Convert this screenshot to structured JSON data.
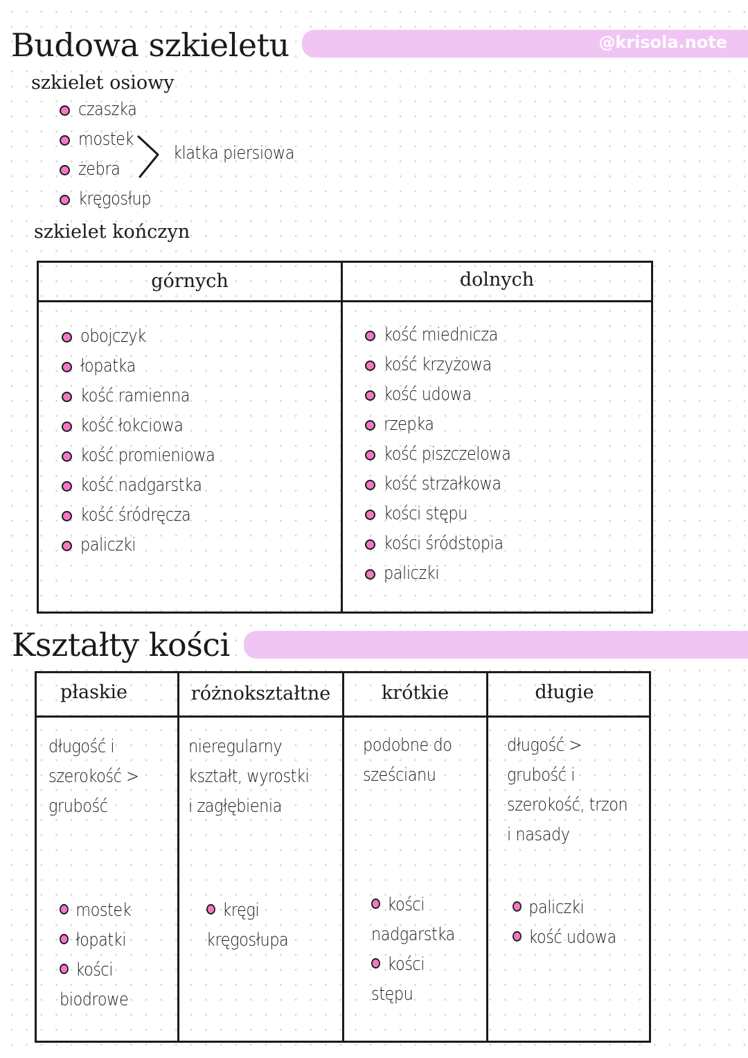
{
  "header": {
    "title": "Budowa szkieletu",
    "handle": "@krisola.note",
    "accent_color": "#f0c5f3",
    "bullet_color": "#f278c6"
  },
  "axial": {
    "heading": "szkielet osiowy",
    "items": [
      "czaszka",
      "mostek",
      "żebra",
      "kręgosłup"
    ],
    "bracket_label": "klatka piersiowa"
  },
  "limbs": {
    "heading": "szkielet kończyn",
    "columns": [
      {
        "header": "górnych",
        "items": [
          "obojczyk",
          "łopatka",
          "kość ramienna",
          "kość łokciowa",
          "kość promieniowa",
          "kość nadgarstka",
          "kość śródręcza",
          "paliczki"
        ]
      },
      {
        "header": "dolnych",
        "items": [
          "kość miednicza",
          "kość krzyżowa",
          "kość udowa",
          "rzepka",
          "kość piszczelowa",
          "kość strzałkowa",
          "kości stępu",
          "kości śródstopia",
          "paliczki"
        ]
      }
    ]
  },
  "shapes": {
    "title": "Kształty kości",
    "columns": [
      {
        "header": "płaskie",
        "description": "długość i\nszerokość >\ngrubość",
        "examples": [
          "mostek",
          "łopatki",
          "kości\nbiodrowe"
        ]
      },
      {
        "header": "różnokształtne",
        "description": "nieregularny\nkształt, wyrostki\ni zagłębienia",
        "examples": [
          "kręgi\nkręgosłupa"
        ]
      },
      {
        "header": "krótkie",
        "description": "podobne do\nsześcianu",
        "examples": [
          "kości\nnadgarstka",
          "kości\nstępu"
        ]
      },
      {
        "header": "długie",
        "description": "długość >\ngrubość i\nszerokość, trzon\ni nasady",
        "examples": [
          "paliczki",
          "kość udowa"
        ]
      }
    ]
  }
}
